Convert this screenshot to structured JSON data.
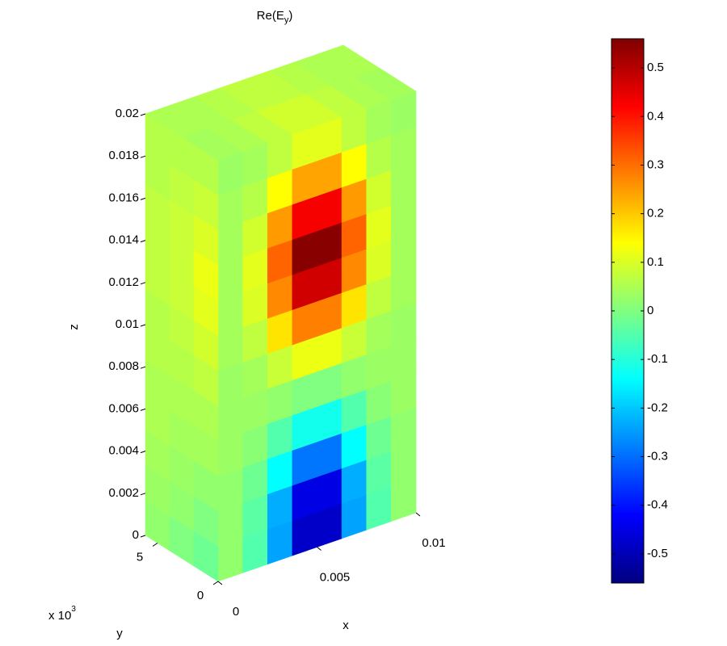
{
  "chart_data": {
    "type": "field3d",
    "title": [
      "Re(E",
      "y",
      ")"
    ],
    "xlabel": "x",
    "ylabel": "y",
    "zlabel": "z",
    "y_multiplier": [
      "x 10",
      "3"
    ],
    "xlim": [
      0,
      0.01
    ],
    "xticks": [
      0,
      0.005,
      0.01
    ],
    "ylim": [
      0,
      6
    ],
    "yticks": [
      0,
      5
    ],
    "zlim": [
      0,
      0.02
    ],
    "zticks": [
      0,
      0.002,
      0.004,
      0.006,
      0.008,
      0.01,
      0.012,
      0.014,
      0.016,
      0.018,
      0.02
    ],
    "clim": [
      -0.56,
      0.56
    ],
    "cticks": [
      -0.5,
      -0.4,
      -0.3,
      -0.2,
      -0.1,
      0,
      0.1,
      0.2,
      0.3,
      0.4,
      0.5
    ],
    "colormap": "jet",
    "front_values": [
      [
        0.02,
        -0.05,
        -0.24,
        -0.48,
        -0.48,
        -0.24,
        -0.05,
        0.02
      ],
      [
        0.02,
        -0.04,
        -0.23,
        -0.45,
        -0.45,
        -0.23,
        -0.04,
        0.02
      ],
      [
        0.02,
        -0.02,
        -0.14,
        -0.29,
        -0.29,
        -0.14,
        -0.02,
        0.02
      ],
      [
        0.03,
        0.01,
        -0.05,
        -0.12,
        -0.12,
        -0.05,
        0.01,
        0.03
      ],
      [
        0.03,
        0.03,
        0.02,
        0.0,
        0.0,
        0.02,
        0.03,
        0.03
      ],
      [
        0.03,
        0.04,
        0.08,
        0.12,
        0.12,
        0.08,
        0.04,
        0.03
      ],
      [
        0.04,
        0.07,
        0.17,
        0.28,
        0.28,
        0.17,
        0.07,
        0.04
      ],
      [
        0.04,
        0.1,
        0.27,
        0.47,
        0.47,
        0.27,
        0.1,
        0.04
      ],
      [
        0.04,
        0.11,
        0.31,
        0.55,
        0.55,
        0.31,
        0.11,
        0.04
      ],
      [
        0.04,
        0.09,
        0.25,
        0.43,
        0.43,
        0.25,
        0.09,
        0.04
      ],
      [
        0.04,
        0.06,
        0.14,
        0.24,
        0.24,
        0.14,
        0.06,
        0.04
      ],
      [
        0.03,
        0.04,
        0.07,
        0.11,
        0.11,
        0.07,
        0.04,
        0.03
      ]
    ],
    "side_values": [
      [
        0.02,
        0.0,
        -0.02
      ],
      [
        0.03,
        0.02,
        0.0
      ],
      [
        0.04,
        0.03,
        0.02
      ],
      [
        0.05,
        0.04,
        0.04
      ],
      [
        0.05,
        0.05,
        0.05
      ],
      [
        0.06,
        0.06,
        0.07
      ],
      [
        0.06,
        0.07,
        0.09
      ],
      [
        0.07,
        0.08,
        0.11
      ],
      [
        0.07,
        0.08,
        0.12
      ],
      [
        0.07,
        0.08,
        0.1
      ],
      [
        0.06,
        0.07,
        0.08
      ],
      [
        0.06,
        0.06,
        0.06
      ]
    ],
    "top_values": [
      [
        0.04,
        0.05,
        0.07,
        0.09,
        0.09,
        0.07,
        0.05,
        0.04
      ],
      [
        0.05,
        0.05,
        0.06,
        0.07,
        0.07,
        0.06,
        0.05,
        0.05
      ]
    ]
  }
}
